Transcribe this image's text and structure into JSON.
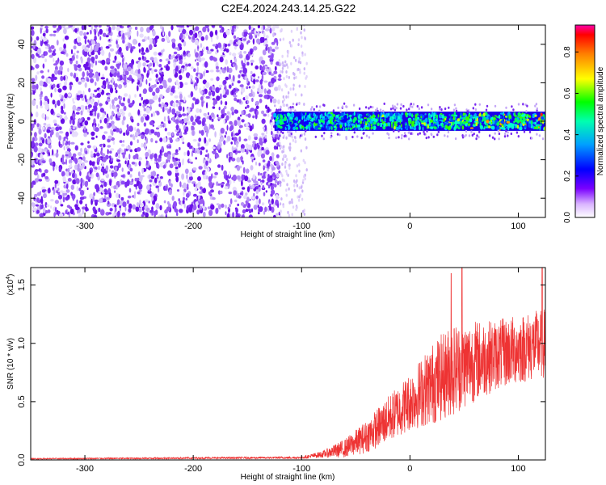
{
  "title": "C2E4.2024.243.14.25.G22",
  "chart_data": [
    {
      "type": "heatmap",
      "xlabel": "Height of straight line (km)",
      "ylabel": "Frequency (Hz)",
      "xlim": [
        -350,
        125
      ],
      "ylim": [
        -50,
        50
      ],
      "xticks": [
        -300,
        -200,
        -100,
        0,
        100
      ],
      "yticks": [
        -40,
        -20,
        0,
        20,
        40
      ],
      "colorbar": {
        "label": "Normalized spectral amplitude",
        "range": [
          0,
          0.93
        ],
        "ticks": [
          "0.0",
          "0.2",
          "0.4",
          "0.6",
          "0.8"
        ]
      },
      "features": {
        "noise_region_x": [
          -350,
          -120
        ],
        "sparse_noise_x": [
          -120,
          -95
        ],
        "signal_band_x": [
          -125,
          125
        ],
        "signal_band_center_hz": 0,
        "signal_band_halfwidth_hz": 5
      }
    },
    {
      "type": "line",
      "xlabel": "Height of straight line (km)",
      "ylabel": "SNR (10 * v/v)",
      "exponent_label": "(x10",
      "exponent": "4",
      "xlim": [
        -350,
        125
      ],
      "ylim": [
        0,
        1.65
      ],
      "xticks": [
        -300,
        -200,
        -100,
        0,
        100
      ],
      "yticks": [
        "0.0",
        "0.5",
        "1.0",
        "1.5"
      ],
      "series": [
        {
          "color": "#ee3333",
          "envelope_x": [
            -350,
            -100,
            -80,
            -60,
            -40,
            -20,
            0,
            20,
            40,
            60,
            80,
            100,
            125
          ],
          "envelope_mean": [
            0.01,
            0.02,
            0.05,
            0.1,
            0.2,
            0.35,
            0.5,
            0.65,
            0.78,
            0.85,
            0.9,
            0.95,
            1.0
          ],
          "envelope_amp": [
            0.005,
            0.01,
            0.03,
            0.08,
            0.14,
            0.2,
            0.25,
            0.35,
            0.4,
            0.35,
            0.3,
            0.3,
            0.3
          ],
          "peaks": [
            [
              38,
              1.6
            ],
            [
              48,
              1.65
            ],
            [
              122,
              1.65
            ]
          ]
        }
      ]
    }
  ]
}
